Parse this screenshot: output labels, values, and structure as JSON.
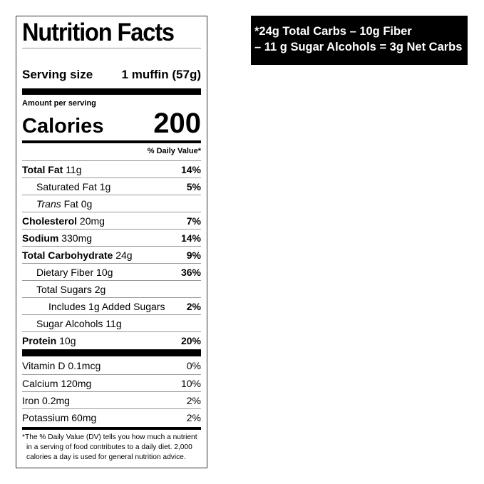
{
  "label": {
    "title": "Nutrition Facts",
    "serving_size_label": "Serving size",
    "serving_size_value": "1 muffin (57g)",
    "amount_per_serving": "Amount per serving",
    "calories_label": "Calories",
    "calories_value": "200",
    "daily_value_header": "% Daily Value*",
    "nutrients": [
      {
        "name": "Total Fat",
        "amount": "11g",
        "dv": "14%",
        "bold": true,
        "indent": 0,
        "dv_bold": true
      },
      {
        "name": "Saturated Fat",
        "amount": "1g",
        "dv": "5%",
        "bold": false,
        "indent": 1,
        "dv_bold": true
      },
      {
        "name": "Trans",
        "name_suffix": "Fat",
        "amount": "0g",
        "dv": "",
        "bold": false,
        "indent": 1,
        "italic": true
      },
      {
        "name": "Cholesterol",
        "amount": "20mg",
        "dv": "7%",
        "bold": true,
        "indent": 0,
        "dv_bold": true
      },
      {
        "name": "Sodium",
        "amount": "330mg",
        "dv": "14%",
        "bold": true,
        "indent": 0,
        "dv_bold": true
      },
      {
        "name": "Total Carbohydrate",
        "amount": "24g",
        "dv": "9%",
        "bold": true,
        "indent": 0,
        "dv_bold": true
      },
      {
        "name": "Dietary Fiber",
        "amount": "10g",
        "dv": "36%",
        "bold": false,
        "indent": 1,
        "dv_bold": true
      },
      {
        "name": "Total Sugars",
        "amount": "2g",
        "dv": "",
        "bold": false,
        "indent": 1
      },
      {
        "name": "Includes 1g Added Sugars",
        "amount": "",
        "dv": "2%",
        "bold": false,
        "indent": 2,
        "dv_bold": true
      },
      {
        "name": "Sugar Alcohols",
        "amount": "11g",
        "dv": "",
        "bold": false,
        "indent": 1
      },
      {
        "name": "Protein",
        "amount": "10g",
        "dv": "20%",
        "bold": true,
        "indent": 0,
        "dv_bold": true
      }
    ],
    "vitamins": [
      {
        "name": "Vitamin D",
        "amount": "0.1mcg",
        "dv": "0%"
      },
      {
        "name": "Calcium",
        "amount": "120mg",
        "dv": "10%"
      },
      {
        "name": "Iron",
        "amount": "0.2mg",
        "dv": "2%"
      },
      {
        "name": "Potassium",
        "amount": "60mg",
        "dv": "2%"
      }
    ],
    "footnote": "*The % Daily Value (DV) tells you how much a nutrient in a serving of food contributes to a daily diet. 2,000 calories a day is used for general nutrition advice."
  },
  "net_carbs": {
    "line1": "*24g Total Carbs – 10g Fiber",
    "line2": "– 11 g Sugar Alcohols = 3g Net Carbs"
  }
}
